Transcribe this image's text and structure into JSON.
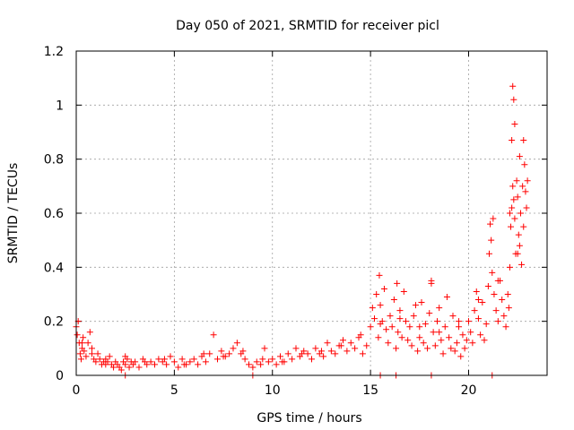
{
  "chart_data": {
    "type": "scatter",
    "title": "Day 050 of 2021, SRMTID for receiver picl",
    "xlabel": "GPS time / hours",
    "ylabel": "SRMTID / TECUs",
    "xlim": [
      0,
      24
    ],
    "ylim": [
      0,
      1.2
    ],
    "xticks": [
      0,
      5,
      10,
      15,
      20
    ],
    "xtick_labels": [
      "0",
      "5",
      "10",
      "15",
      "20"
    ],
    "yticks": [
      0,
      0.2,
      0.4,
      0.6,
      0.8,
      1.0,
      1.2
    ],
    "ytick_labels": [
      "0",
      "0.2",
      "0.4",
      "0.6",
      "0.8",
      "1",
      "1.2"
    ],
    "grid": true,
    "marker": "+",
    "marker_color": "#ff0000",
    "series": [
      {
        "name": "SRMTID",
        "x": [
          0.0,
          0.05,
          0.1,
          0.15,
          0.2,
          0.25,
          0.3,
          0.35,
          0.4,
          0.5,
          0.6,
          0.7,
          0.8,
          0.9,
          1.0,
          1.1,
          1.2,
          1.3,
          1.4,
          1.5,
          1.6,
          1.7,
          1.8,
          1.9,
          2.0,
          2.1,
          2.2,
          2.3,
          2.4,
          2.5,
          2.6,
          2.7,
          2.8,
          2.9,
          3.0,
          3.2,
          3.4,
          3.6,
          3.8,
          4.0,
          4.2,
          4.4,
          4.6,
          4.8,
          5.0,
          5.2,
          5.4,
          5.6,
          5.8,
          6.0,
          6.2,
          6.4,
          6.6,
          6.8,
          7.0,
          7.2,
          7.4,
          7.6,
          7.8,
          8.0,
          8.2,
          8.4,
          8.6,
          8.8,
          9.0,
          9.2,
          9.4,
          9.6,
          9.8,
          10.0,
          10.2,
          10.4,
          10.6,
          10.8,
          11.0,
          11.2,
          11.4,
          11.6,
          11.8,
          12.0,
          12.2,
          12.4,
          12.6,
          12.8,
          13.0,
          13.2,
          13.4,
          13.6,
          13.8,
          14.0,
          14.2,
          14.4,
          14.6,
          14.8,
          15.0,
          15.1,
          15.2,
          15.3,
          15.4,
          15.5,
          15.6,
          15.7,
          15.8,
          15.9,
          16.0,
          16.1,
          16.2,
          16.3,
          16.4,
          16.5,
          16.6,
          16.7,
          16.8,
          16.9,
          17.0,
          17.1,
          17.2,
          17.3,
          17.4,
          17.5,
          17.6,
          17.7,
          17.8,
          17.9,
          18.0,
          18.1,
          18.2,
          18.3,
          18.4,
          18.5,
          18.6,
          18.7,
          18.8,
          18.9,
          19.0,
          19.1,
          19.2,
          19.3,
          19.4,
          19.5,
          19.6,
          19.7,
          19.8,
          19.9,
          20.0,
          20.1,
          20.2,
          20.3,
          20.4,
          20.5,
          20.6,
          20.7,
          20.8,
          20.9,
          21.0,
          21.05,
          21.1,
          21.15,
          21.2,
          21.3,
          21.4,
          21.5,
          21.6,
          21.7,
          21.8,
          21.9,
          22.0,
          22.05,
          22.1,
          22.15,
          22.2,
          22.25,
          22.3,
          22.35,
          22.4,
          22.45,
          22.5,
          22.55,
          22.6,
          22.65,
          22.7,
          22.75,
          22.8,
          22.85,
          22.9,
          22.95,
          23.0,
          0.3,
          0.8,
          1.5,
          2.5,
          3.5,
          4.5,
          5.5,
          6.5,
          7.5,
          8.5,
          9.5,
          10.5,
          11.5,
          12.5,
          13.5,
          14.5,
          15.5,
          16.5,
          17.5,
          18.5,
          19.5,
          20.5,
          21.5,
          22.5,
          15.45,
          16.35,
          18.1,
          21.25,
          22.25,
          22.3,
          22.35,
          22.8,
          22.6,
          22.2,
          22.1,
          2.5,
          9.0,
          15.5,
          16.3,
          18.1,
          21.2
        ],
        "y": [
          0.18,
          0.15,
          0.2,
          0.12,
          0.08,
          0.06,
          0.1,
          0.14,
          0.09,
          0.07,
          0.12,
          0.16,
          0.1,
          0.06,
          0.05,
          0.08,
          0.06,
          0.04,
          0.05,
          0.04,
          0.05,
          0.07,
          0.04,
          0.03,
          0.05,
          0.04,
          0.03,
          0.02,
          0.05,
          0.04,
          0.06,
          0.03,
          0.05,
          0.04,
          0.05,
          0.03,
          0.06,
          0.04,
          0.05,
          0.04,
          0.06,
          0.05,
          0.04,
          0.07,
          0.05,
          0.03,
          0.06,
          0.04,
          0.05,
          0.06,
          0.04,
          0.07,
          0.05,
          0.08,
          0.15,
          0.06,
          0.09,
          0.07,
          0.08,
          0.1,
          0.12,
          0.08,
          0.06,
          0.04,
          0.03,
          0.05,
          0.04,
          0.1,
          0.05,
          0.06,
          0.04,
          0.07,
          0.05,
          0.08,
          0.06,
          0.1,
          0.07,
          0.09,
          0.08,
          0.06,
          0.1,
          0.08,
          0.07,
          0.12,
          0.09,
          0.08,
          0.11,
          0.13,
          0.09,
          0.12,
          0.1,
          0.14,
          0.08,
          0.11,
          0.18,
          0.25,
          0.21,
          0.3,
          0.14,
          0.26,
          0.2,
          0.32,
          0.17,
          0.12,
          0.22,
          0.18,
          0.28,
          0.1,
          0.16,
          0.24,
          0.14,
          0.31,
          0.2,
          0.13,
          0.18,
          0.11,
          0.22,
          0.26,
          0.09,
          0.14,
          0.27,
          0.12,
          0.19,
          0.1,
          0.23,
          0.34,
          0.16,
          0.11,
          0.2,
          0.25,
          0.13,
          0.08,
          0.18,
          0.29,
          0.14,
          0.1,
          0.22,
          0.09,
          0.12,
          0.18,
          0.07,
          0.15,
          0.1,
          0.13,
          0.2,
          0.16,
          0.12,
          0.24,
          0.31,
          0.21,
          0.15,
          0.27,
          0.13,
          0.19,
          0.33,
          0.45,
          0.56,
          0.5,
          0.38,
          0.3,
          0.24,
          0.2,
          0.35,
          0.28,
          0.22,
          0.18,
          0.3,
          0.25,
          0.4,
          0.55,
          0.62,
          0.7,
          0.65,
          0.58,
          0.45,
          0.72,
          0.66,
          0.52,
          0.48,
          0.6,
          0.41,
          0.7,
          0.55,
          0.78,
          0.68,
          0.62,
          0.72,
          0.12,
          0.08,
          0.06,
          0.07,
          0.05,
          0.06,
          0.04,
          0.08,
          0.07,
          0.09,
          0.06,
          0.05,
          0.08,
          0.09,
          0.11,
          0.15,
          0.19,
          0.21,
          0.18,
          0.16,
          0.2,
          0.28,
          0.35,
          0.45,
          0.37,
          0.34,
          0.35,
          0.58,
          1.07,
          1.02,
          0.93,
          0.87,
          0.81,
          0.87,
          0.6,
          0.0,
          0.0,
          0.0,
          0.0,
          0.0,
          0.0
        ]
      }
    ]
  }
}
